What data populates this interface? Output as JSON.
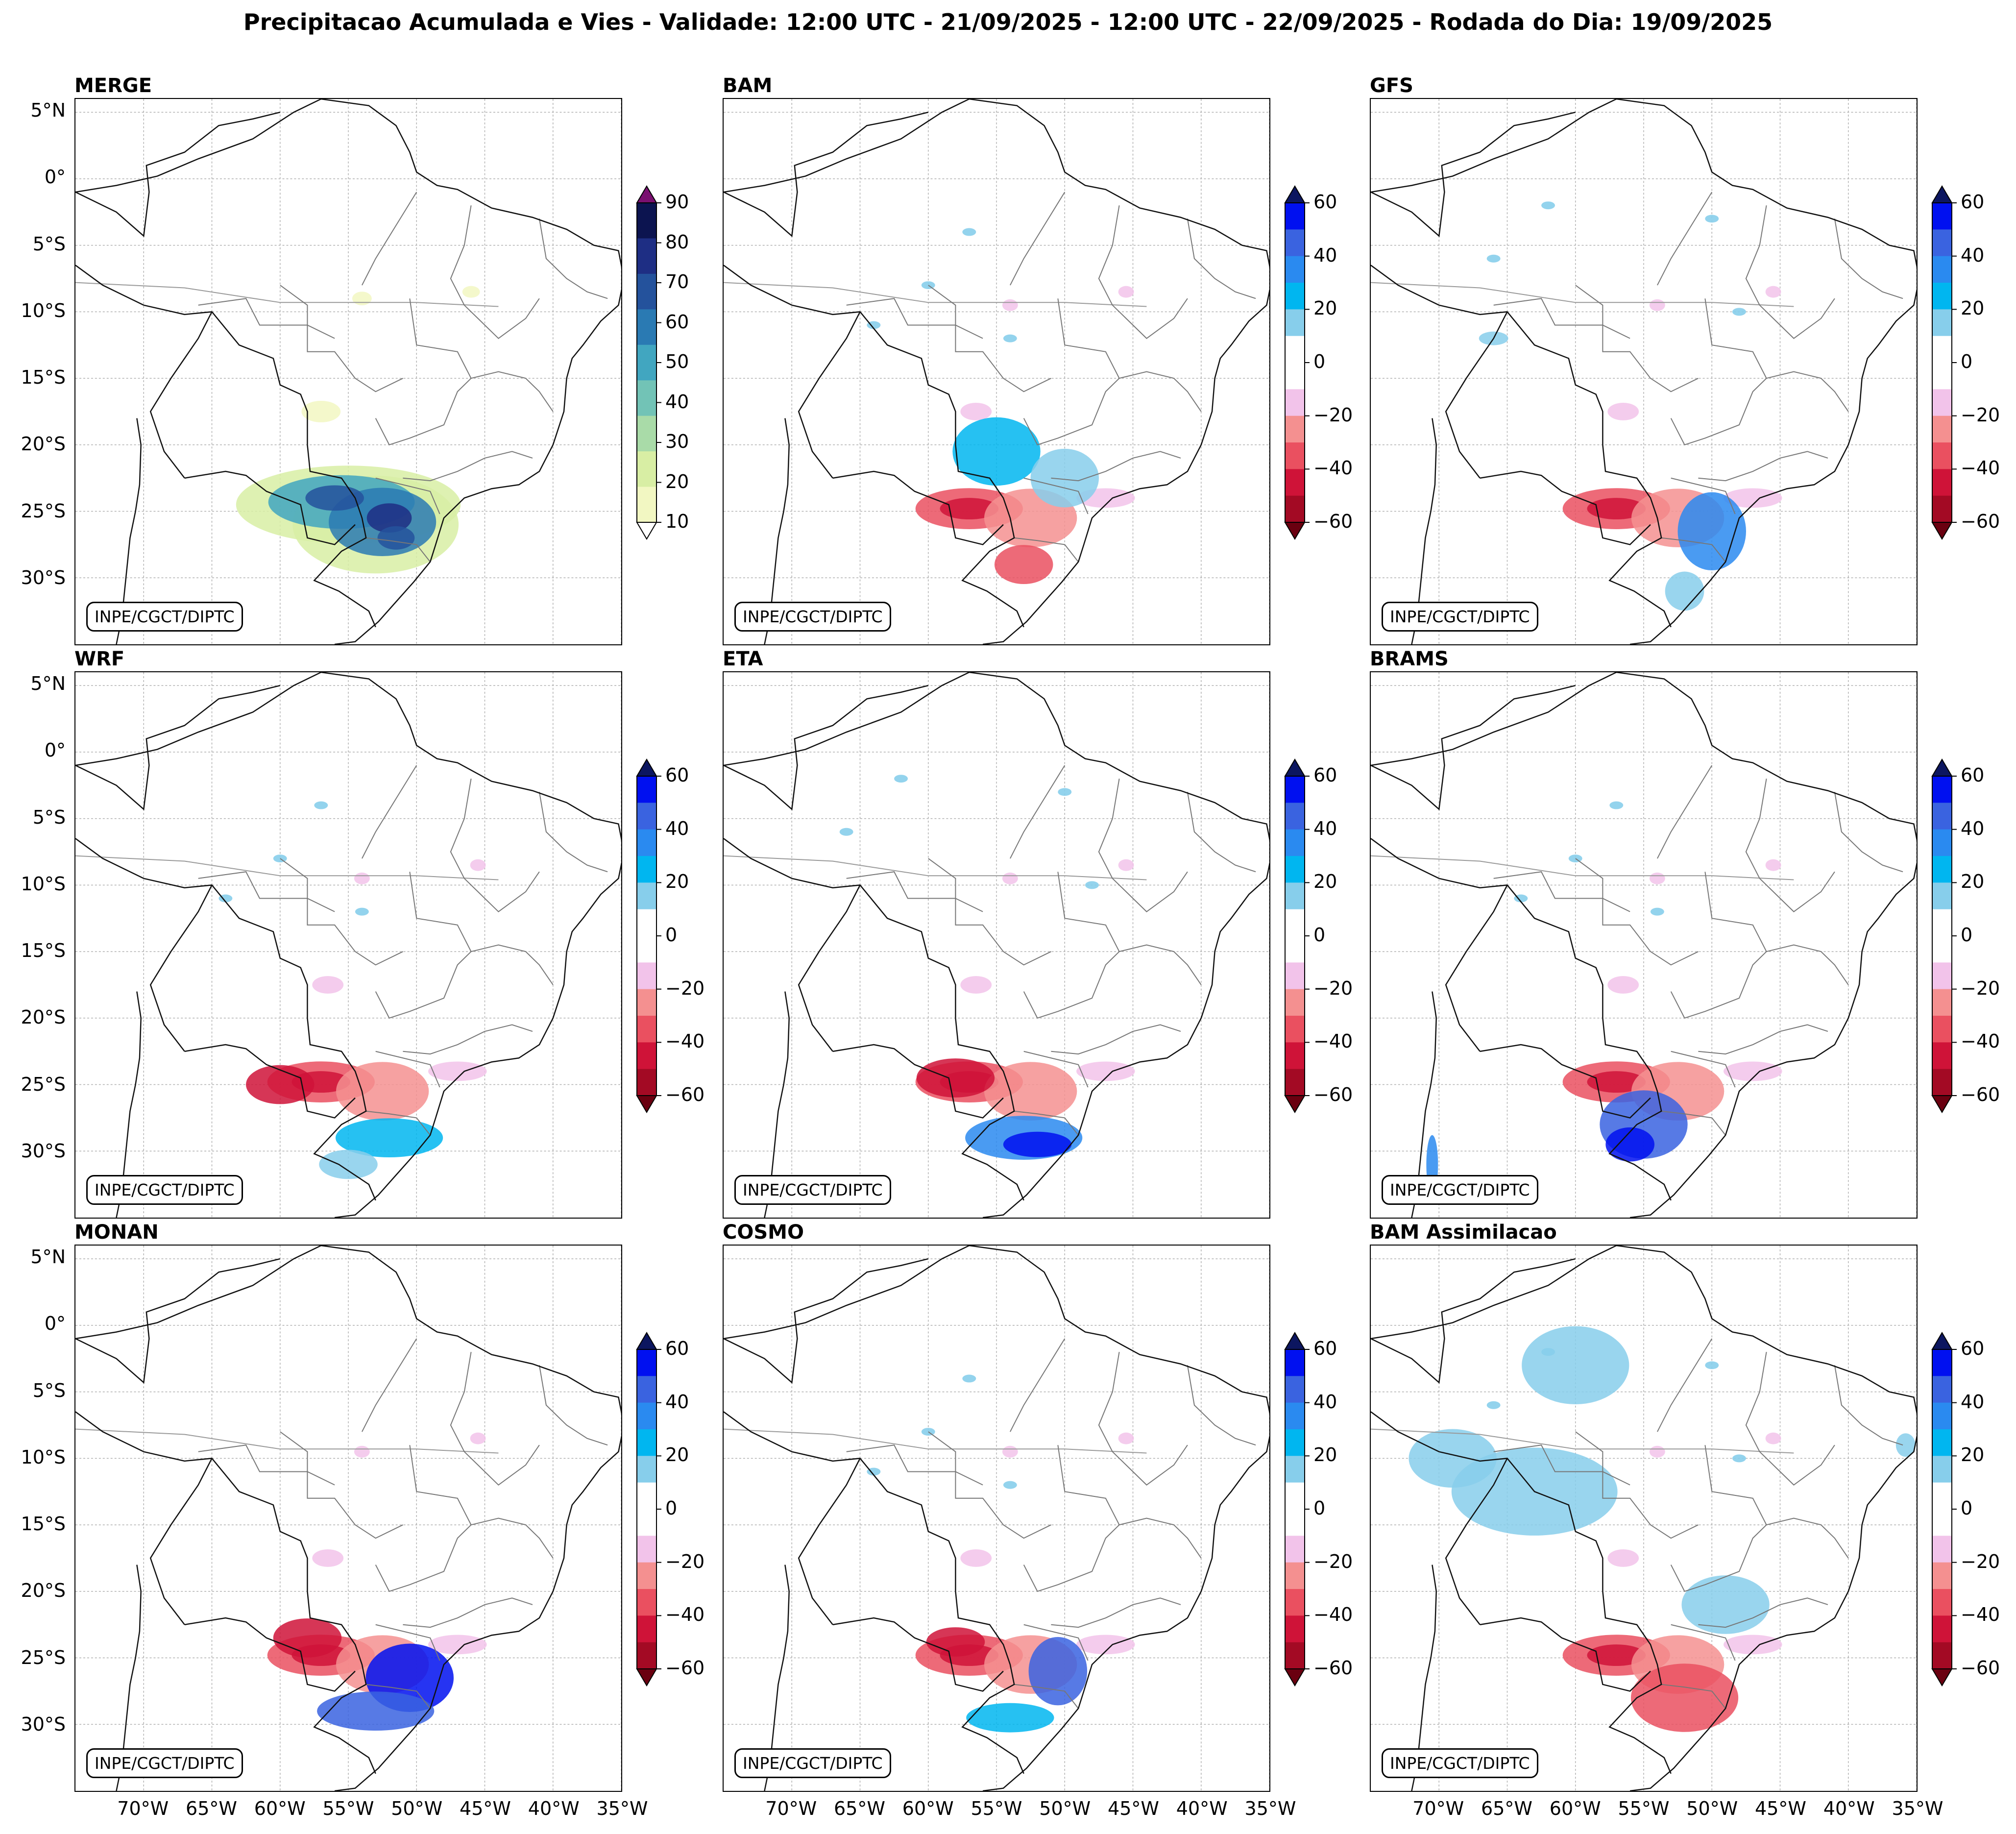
{
  "title": "Precipitacao Acumulada e Vies - Validade: 12:00 UTC - 21/09/2025 - 12:00 UTC - 22/09/2025 - Rodada do Dia: 19/09/2025",
  "credit": "INPE/CGCT/DIPTC",
  "panels": [
    {
      "name": "MERGE",
      "colorbar": "precip"
    },
    {
      "name": "BAM",
      "colorbar": "bias"
    },
    {
      "name": "GFS",
      "colorbar": "bias"
    },
    {
      "name": "WRF",
      "colorbar": "bias"
    },
    {
      "name": "ETA",
      "colorbar": "bias"
    },
    {
      "name": "BRAMS",
      "colorbar": "bias"
    },
    {
      "name": "MONAN",
      "colorbar": "bias"
    },
    {
      "name": "COSMO",
      "colorbar": "bias"
    },
    {
      "name": "BAM Assimilacao",
      "colorbar": "bias"
    }
  ],
  "lat_labels": [
    "5°N",
    "0°",
    "5°S",
    "10°S",
    "15°S",
    "20°S",
    "25°S",
    "30°S"
  ],
  "lon_labels": [
    "70°W",
    "65°W",
    "60°W",
    "55°W",
    "50°W",
    "45°W",
    "40°W",
    "35°W"
  ],
  "precip_colorbar": {
    "ticks": [
      "90",
      "80",
      "70",
      "60",
      "50",
      "40",
      "30",
      "20",
      "10"
    ],
    "colors": [
      "#f2f7c2",
      "#d8eea4",
      "#a9dba8",
      "#72c3b6",
      "#41a6c0",
      "#2a7ab3",
      "#24529c",
      "#1e2e84",
      "#0c1450"
    ],
    "over_color": "#7a1070",
    "under_color": "#ffffff"
  },
  "bias_colorbar": {
    "ticks": [
      "60",
      "40",
      "20",
      "0",
      "−20",
      "−40",
      "−60"
    ],
    "colors": [
      "#a30a24",
      "#cf1338",
      "#ea5060",
      "#f49090",
      "#f2c3ea",
      "#ffffff",
      "#ffffff",
      "#87ceeb",
      "#00b6f0",
      "#2a8af0",
      "#3a63e0",
      "#0010f0"
    ],
    "over_color": "#0c1660",
    "under_color": "#6a0010"
  }
}
